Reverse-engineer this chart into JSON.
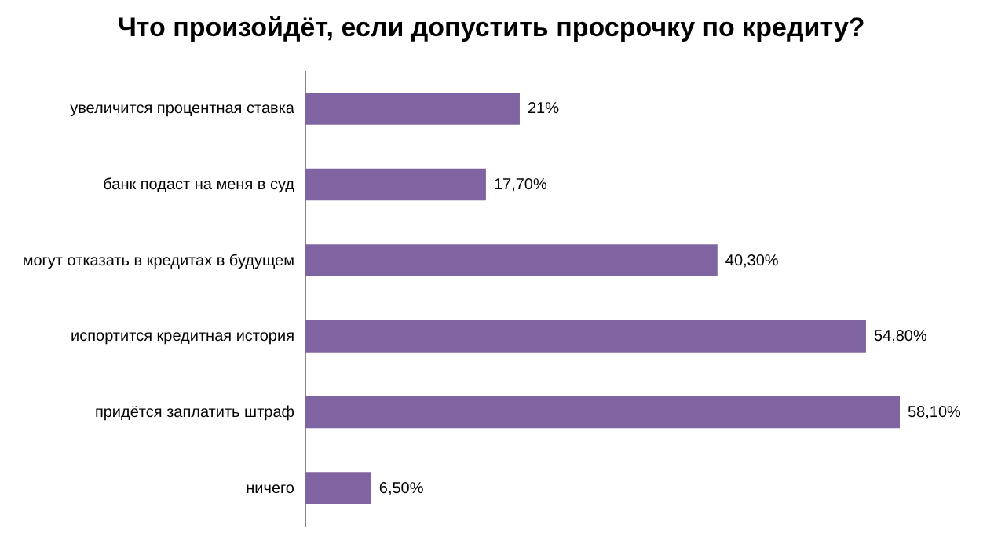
{
  "chart_data": {
    "type": "bar",
    "orientation": "horizontal",
    "title": "Что произойдёт, если допустить просрочку по кредиту?",
    "categories": [
      "увеличится процентная ставка",
      "банк подаст на меня в суд",
      "могут отказать в кредитах в будущем",
      "испортится кредитная история",
      "придётся заплатить штраф",
      "ничего"
    ],
    "values": [
      21,
      17.7,
      40.3,
      54.8,
      58.1,
      6.5
    ],
    "value_labels": [
      "21%",
      "17,70%",
      "40,30%",
      "54,80%",
      "58,10%",
      "6,50%"
    ],
    "color": "#8064a2"
  }
}
